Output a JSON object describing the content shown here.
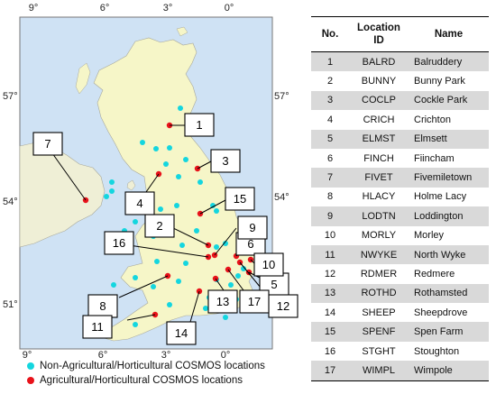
{
  "map": {
    "top_axis_labels": [
      "9°",
      "6°",
      "3°",
      "0°"
    ],
    "bottom_axis_labels": [
      "9°",
      "6°",
      "3°",
      "0°"
    ],
    "left_axis_labels": [
      "57°",
      "54°",
      "51°"
    ],
    "right_axis_labels": [
      "57°",
      "54°"
    ],
    "agri_color": "#e8121a",
    "nonagri_color": "#14d6df",
    "callout_labels": [
      "1",
      "2",
      "3",
      "4",
      "5",
      "6",
      "7",
      "8",
      "9",
      "10",
      "11",
      "12",
      "13",
      "14",
      "15",
      "16",
      "17"
    ]
  },
  "legend": {
    "nonagri_label": "Non-Agricultural/Horticultural COSMOS locations",
    "agri_label": "Agricultural/Horticultural COSMOS locations"
  },
  "table": {
    "headers": {
      "no": "No.",
      "id_line1": "Location",
      "id_line2": "ID",
      "name": "Name"
    },
    "rows": [
      {
        "no": "1",
        "id": "BALRD",
        "name": "Balruddery"
      },
      {
        "no": "2",
        "id": "BUNNY",
        "name": "Bunny Park"
      },
      {
        "no": "3",
        "id": "COCLP",
        "name": "Cockle Park"
      },
      {
        "no": "4",
        "id": "CRICH",
        "name": "Crichton"
      },
      {
        "no": "5",
        "id": "ELMST",
        "name": "Elmsett"
      },
      {
        "no": "6",
        "id": "FINCH",
        "name": "Fiincham"
      },
      {
        "no": "7",
        "id": "FIVET",
        "name": "Fivemiletown"
      },
      {
        "no": "8",
        "id": "HLACY",
        "name": "Holme Lacy"
      },
      {
        "no": "9",
        "id": "LODTN",
        "name": "Loddington"
      },
      {
        "no": "10",
        "id": "MORLY",
        "name": "Morley"
      },
      {
        "no": "11",
        "id": "NWYKE",
        "name": "North Wyke"
      },
      {
        "no": "12",
        "id": "RDMER",
        "name": "Redmere"
      },
      {
        "no": "13",
        "id": "ROTHD",
        "name": "Rothamsted"
      },
      {
        "no": "14",
        "id": "SHEEP",
        "name": "Sheepdrove"
      },
      {
        "no": "15",
        "id": "SPENF",
        "name": "Spen Farm"
      },
      {
        "no": "16",
        "id": "STGHT",
        "name": "Stoughton"
      },
      {
        "no": "17",
        "id": "WIMPL",
        "name": "Wimpole"
      }
    ]
  }
}
